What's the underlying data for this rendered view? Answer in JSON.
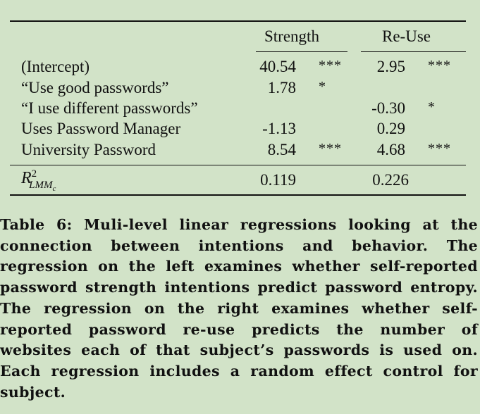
{
  "table": {
    "headers": {
      "strength": "Strength",
      "reuse": "Re-Use"
    },
    "rows": [
      {
        "label": "(Intercept)",
        "strength": "40.54",
        "strength_sig": "***",
        "reuse": "2.95",
        "reuse_sig": "***"
      },
      {
        "label": "“Use good passwords”",
        "strength": "1.78",
        "strength_sig": "*",
        "reuse": "",
        "reuse_sig": ""
      },
      {
        "label": "“I use different passwords”",
        "strength": "",
        "strength_sig": "",
        "reuse": "-0.30",
        "reuse_sig": "*"
      },
      {
        "label": "Uses Password Manager",
        "strength": "-1.13",
        "strength_sig": "",
        "reuse": "0.29",
        "reuse_sig": ""
      },
      {
        "label": "University Password",
        "strength": "8.54",
        "strength_sig": "***",
        "reuse": "4.68",
        "reuse_sig": "***"
      }
    ],
    "r2": {
      "symbol": "R",
      "sup": "2",
      "sub": "LMM",
      "subsub": "c",
      "strength": "0.119",
      "reuse": "0.226"
    }
  },
  "caption": "Table 6: Muli-level linear regressions looking at the connection between intentions and behavior. The regression on the left examines whether self-reported password strength intentions predict password entropy. The regression on the right examines whether self-reported password re-use predicts the number of websites each of that subject’s passwords is used on. Each regression includes a random effect control for subject."
}
